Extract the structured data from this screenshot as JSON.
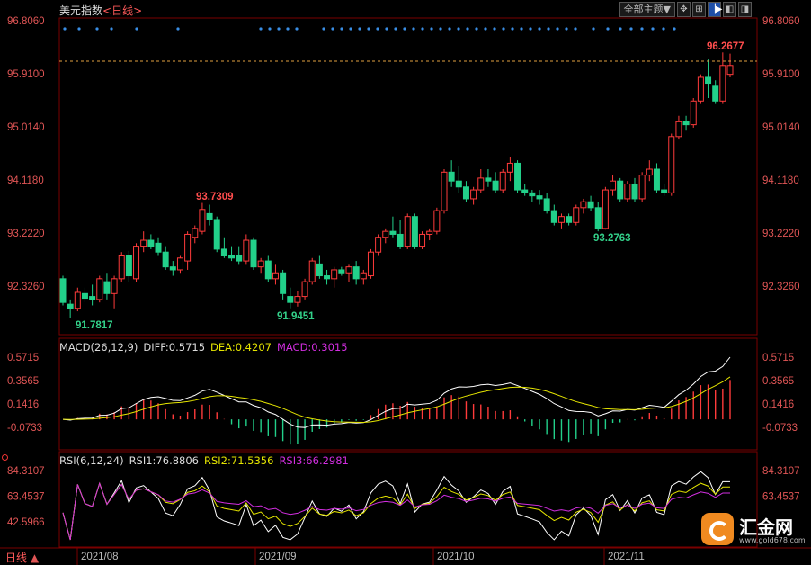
{
  "header": {
    "title": "美元指数",
    "period": "<日线>",
    "theme_label": "全部主题▼",
    "icons": [
      "cross-arrows-icon",
      "zoom-icon",
      "split-icon",
      "toggle-left-icon",
      "toggle-right-icon"
    ]
  },
  "price_axis": {
    "ticks": [
      "96.8060",
      "95.9100",
      "95.0140",
      "94.1180",
      "93.2220",
      "92.3260"
    ],
    "values": [
      96.806,
      95.91,
      95.014,
      94.118,
      93.222,
      92.326
    ]
  },
  "macd": {
    "label": "MACD(26,12,9)",
    "diff": "DIFF:0.5715",
    "dea": "DEA:0.4207",
    "macd": "MACD:0.3015",
    "ticks": [
      "0.5715",
      "0.3565",
      "0.1416",
      "-0.0733"
    ],
    "values": [
      0.5715,
      0.3565,
      0.1416,
      -0.0733
    ]
  },
  "rsi": {
    "label": "RSI(6,12,24)",
    "rsi1": "RSI1:76.8806",
    "rsi2": "RSI2:71.5356",
    "rsi3": "RSI3:66.2981",
    "ticks": [
      "84.3107",
      "63.4537",
      "42.5966"
    ],
    "values": [
      84.3107,
      63.4537,
      42.5966
    ]
  },
  "dates": [
    "2021/08",
    "2021/09",
    "2021/10",
    "2021/11"
  ],
  "period_tab": "日线",
  "logo": {
    "name": "汇金网",
    "url": "www.gold678.com"
  },
  "annotations": [
    {
      "text": "96.2677",
      "color": "#ff4d4d"
    },
    {
      "text": "93.7309",
      "color": "#ff4d4d"
    },
    {
      "text": "91.7817",
      "color": "#33d18a"
    },
    {
      "text": "91.9451",
      "color": "#33d18a"
    },
    {
      "text": "93.2763",
      "color": "#33d18a"
    }
  ],
  "colors": {
    "up": "#ff3b3b",
    "down": "#22d08a",
    "grid": "#7a0000",
    "diff": "#ffffff",
    "dea": "#e5e500",
    "rsi3": "#d22ee0"
  },
  "chart_data": {
    "type": "candlestick",
    "ylim": [
      91.6,
      97.0
    ],
    "candles": [
      {
        "o": 92.45,
        "h": 92.5,
        "l": 92.0,
        "c": 92.05
      },
      {
        "o": 92.02,
        "h": 92.1,
        "l": 91.78,
        "c": 91.95
      },
      {
        "o": 91.95,
        "h": 92.3,
        "l": 91.9,
        "c": 92.22
      },
      {
        "o": 92.2,
        "h": 92.3,
        "l": 92.05,
        "c": 92.12
      },
      {
        "o": 92.15,
        "h": 92.35,
        "l": 92.0,
        "c": 92.1
      },
      {
        "o": 92.1,
        "h": 92.5,
        "l": 92.05,
        "c": 92.45
      },
      {
        "o": 92.4,
        "h": 92.55,
        "l": 92.1,
        "c": 92.2
      },
      {
        "o": 92.2,
        "h": 92.5,
        "l": 91.95,
        "c": 92.45
      },
      {
        "o": 92.45,
        "h": 92.9,
        "l": 92.4,
        "c": 92.85
      },
      {
        "o": 92.85,
        "h": 92.92,
        "l": 92.4,
        "c": 92.5
      },
      {
        "o": 92.45,
        "h": 93.05,
        "l": 92.4,
        "c": 93.0
      },
      {
        "o": 93.0,
        "h": 93.25,
        "l": 92.9,
        "c": 93.1
      },
      {
        "o": 93.1,
        "h": 93.2,
        "l": 92.95,
        "c": 93.0
      },
      {
        "o": 93.05,
        "h": 93.15,
        "l": 92.85,
        "c": 92.9
      },
      {
        "o": 92.9,
        "h": 93.0,
        "l": 92.6,
        "c": 92.65
      },
      {
        "o": 92.65,
        "h": 92.75,
        "l": 92.5,
        "c": 92.6
      },
      {
        "o": 92.6,
        "h": 92.85,
        "l": 92.55,
        "c": 92.8
      },
      {
        "o": 92.75,
        "h": 93.25,
        "l": 92.6,
        "c": 93.2
      },
      {
        "o": 93.15,
        "h": 93.35,
        "l": 93.05,
        "c": 93.3
      },
      {
        "o": 93.25,
        "h": 93.73,
        "l": 93.2,
        "c": 93.62
      },
      {
        "o": 93.55,
        "h": 93.7,
        "l": 93.35,
        "c": 93.45
      },
      {
        "o": 93.45,
        "h": 93.5,
        "l": 92.9,
        "c": 92.95
      },
      {
        "o": 92.95,
        "h": 93.15,
        "l": 92.8,
        "c": 92.85
      },
      {
        "o": 92.85,
        "h": 93.0,
        "l": 92.75,
        "c": 92.8
      },
      {
        "o": 92.85,
        "h": 93.0,
        "l": 92.7,
        "c": 92.75
      },
      {
        "o": 92.75,
        "h": 93.2,
        "l": 92.7,
        "c": 93.1
      },
      {
        "o": 93.1,
        "h": 93.15,
        "l": 92.6,
        "c": 92.65
      },
      {
        "o": 92.65,
        "h": 92.8,
        "l": 92.55,
        "c": 92.75
      },
      {
        "o": 92.75,
        "h": 92.85,
        "l": 92.4,
        "c": 92.45
      },
      {
        "o": 92.45,
        "h": 92.7,
        "l": 92.35,
        "c": 92.55
      },
      {
        "o": 92.55,
        "h": 92.6,
        "l": 92.1,
        "c": 92.2
      },
      {
        "o": 92.15,
        "h": 92.3,
        "l": 91.95,
        "c": 92.05
      },
      {
        "o": 92.05,
        "h": 92.25,
        "l": 91.98,
        "c": 92.15
      },
      {
        "o": 92.15,
        "h": 92.45,
        "l": 92.1,
        "c": 92.4
      },
      {
        "o": 92.4,
        "h": 92.8,
        "l": 92.35,
        "c": 92.75
      },
      {
        "o": 92.7,
        "h": 92.85,
        "l": 92.45,
        "c": 92.5
      },
      {
        "o": 92.5,
        "h": 92.6,
        "l": 92.35,
        "c": 92.45
      },
      {
        "o": 92.45,
        "h": 92.65,
        "l": 92.3,
        "c": 92.6
      },
      {
        "o": 92.6,
        "h": 92.65,
        "l": 92.5,
        "c": 92.55
      },
      {
        "o": 92.55,
        "h": 92.7,
        "l": 92.4,
        "c": 92.65
      },
      {
        "o": 92.65,
        "h": 92.75,
        "l": 92.35,
        "c": 92.45
      },
      {
        "o": 92.45,
        "h": 92.6,
        "l": 92.35,
        "c": 92.55
      },
      {
        "o": 92.5,
        "h": 92.95,
        "l": 92.45,
        "c": 92.9
      },
      {
        "o": 92.9,
        "h": 93.2,
        "l": 92.85,
        "c": 93.15
      },
      {
        "o": 93.15,
        "h": 93.3,
        "l": 93.05,
        "c": 93.25
      },
      {
        "o": 93.25,
        "h": 93.5,
        "l": 93.15,
        "c": 93.2
      },
      {
        "o": 93.2,
        "h": 93.45,
        "l": 92.95,
        "c": 93.0
      },
      {
        "o": 93.0,
        "h": 93.55,
        "l": 92.95,
        "c": 93.5
      },
      {
        "o": 93.5,
        "h": 93.55,
        "l": 92.95,
        "c": 93.0
      },
      {
        "o": 93.0,
        "h": 93.25,
        "l": 92.95,
        "c": 93.2
      },
      {
        "o": 93.2,
        "h": 93.3,
        "l": 93.1,
        "c": 93.25
      },
      {
        "o": 93.25,
        "h": 93.65,
        "l": 93.2,
        "c": 93.6
      },
      {
        "o": 93.6,
        "h": 94.3,
        "l": 93.55,
        "c": 94.25
      },
      {
        "o": 94.25,
        "h": 94.45,
        "l": 94.0,
        "c": 94.1
      },
      {
        "o": 94.1,
        "h": 94.35,
        "l": 93.9,
        "c": 94.0
      },
      {
        "o": 94.0,
        "h": 94.1,
        "l": 93.75,
        "c": 93.8
      },
      {
        "o": 93.8,
        "h": 94.0,
        "l": 93.7,
        "c": 93.95
      },
      {
        "o": 93.95,
        "h": 94.3,
        "l": 93.9,
        "c": 94.15
      },
      {
        "o": 94.15,
        "h": 94.3,
        "l": 94.0,
        "c": 94.1
      },
      {
        "o": 94.1,
        "h": 94.25,
        "l": 93.9,
        "c": 93.95
      },
      {
        "o": 93.95,
        "h": 94.3,
        "l": 93.9,
        "c": 94.25
      },
      {
        "o": 94.25,
        "h": 94.5,
        "l": 94.1,
        "c": 94.4
      },
      {
        "o": 94.4,
        "h": 94.45,
        "l": 93.9,
        "c": 93.95
      },
      {
        "o": 93.95,
        "h": 94.05,
        "l": 93.85,
        "c": 93.9
      },
      {
        "o": 93.9,
        "h": 93.95,
        "l": 93.75,
        "c": 93.85
      },
      {
        "o": 93.85,
        "h": 93.95,
        "l": 93.7,
        "c": 93.8
      },
      {
        "o": 93.8,
        "h": 93.9,
        "l": 93.55,
        "c": 93.6
      },
      {
        "o": 93.6,
        "h": 93.7,
        "l": 93.35,
        "c": 93.4
      },
      {
        "o": 93.4,
        "h": 93.55,
        "l": 93.3,
        "c": 93.5
      },
      {
        "o": 93.5,
        "h": 93.55,
        "l": 93.35,
        "c": 93.4
      },
      {
        "o": 93.4,
        "h": 93.7,
        "l": 93.35,
        "c": 93.65
      },
      {
        "o": 93.65,
        "h": 93.8,
        "l": 93.55,
        "c": 93.75
      },
      {
        "o": 93.75,
        "h": 93.85,
        "l": 93.6,
        "c": 93.65
      },
      {
        "o": 93.65,
        "h": 93.75,
        "l": 93.25,
        "c": 93.3
      },
      {
        "o": 93.3,
        "h": 94.0,
        "l": 93.28,
        "c": 93.95
      },
      {
        "o": 93.95,
        "h": 94.2,
        "l": 93.85,
        "c": 94.1
      },
      {
        "o": 94.1,
        "h": 94.15,
        "l": 93.75,
        "c": 93.8
      },
      {
        "o": 93.8,
        "h": 94.1,
        "l": 93.75,
        "c": 94.05
      },
      {
        "o": 94.05,
        "h": 94.15,
        "l": 93.75,
        "c": 93.8
      },
      {
        "o": 93.8,
        "h": 94.25,
        "l": 93.75,
        "c": 94.2
      },
      {
        "o": 94.2,
        "h": 94.45,
        "l": 94.1,
        "c": 94.3
      },
      {
        "o": 94.3,
        "h": 94.4,
        "l": 93.9,
        "c": 93.95
      },
      {
        "o": 93.95,
        "h": 94.05,
        "l": 93.85,
        "c": 93.9
      },
      {
        "o": 93.9,
        "h": 94.9,
        "l": 93.85,
        "c": 94.85
      },
      {
        "o": 94.85,
        "h": 95.2,
        "l": 94.8,
        "c": 95.1
      },
      {
        "o": 95.1,
        "h": 95.2,
        "l": 94.95,
        "c": 95.05
      },
      {
        "o": 95.05,
        "h": 95.5,
        "l": 95.0,
        "c": 95.45
      },
      {
        "o": 95.45,
        "h": 95.9,
        "l": 95.4,
        "c": 95.85
      },
      {
        "o": 95.85,
        "h": 96.15,
        "l": 95.5,
        "c": 95.75
      },
      {
        "o": 95.7,
        "h": 95.8,
        "l": 95.4,
        "c": 95.45
      },
      {
        "o": 95.45,
        "h": 96.27,
        "l": 95.4,
        "c": 96.05
      },
      {
        "o": 95.9,
        "h": 96.25,
        "l": 95.85,
        "c": 96.05
      }
    ]
  }
}
